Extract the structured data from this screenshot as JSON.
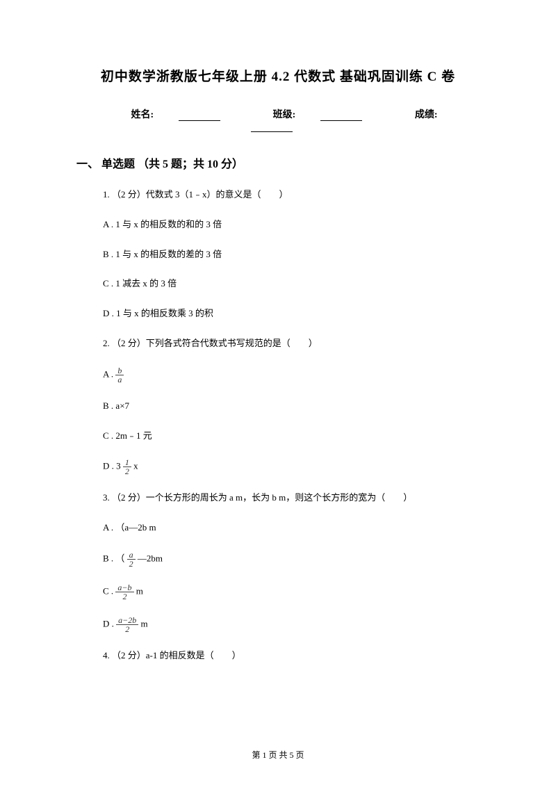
{
  "title": "初中数学浙教版七年级上册 4.2 代数式 基础巩固训练 C 卷",
  "info": {
    "name_label": "姓名:",
    "class_label": "班级:",
    "score_label": "成绩:"
  },
  "section1": {
    "header": "一、 单选题 （共 5 题；共 10 分）",
    "q1": {
      "text": "1. （2 分）代数式 3（1﹣x）的意义是（　　）",
      "optA": "A . 1 与 x 的相反数的和的 3 倍",
      "optB": "B . 1 与 x 的相反数的差的 3 倍",
      "optC": "C . 1 减去 x 的 3 倍",
      "optD": "D . 1 与 x 的相反数乘 3 的积"
    },
    "q2": {
      "text": "2. （2 分）下列各式符合代数式书写规范的是（　　）",
      "optA_prefix": "A . ",
      "optA_frac_num": "b",
      "optA_frac_den": "a",
      "optB": "B . a×7",
      "optC": "C . 2m﹣1 元",
      "optD_prefix": "D . 3 ",
      "optD_frac_num": "1",
      "optD_frac_den": "2",
      "optD_suffix": "  x"
    },
    "q3": {
      "text": "3. （2 分）一个长方形的周长为 a m，长为 b m，则这个长方形的宽为（　　）",
      "optA": "A . （a—2b m",
      "optB_prefix": "B . （",
      "optB_frac_num": "a",
      "optB_frac_den": "2",
      "optB_suffix": " —2bm",
      "optC_prefix": "C . ",
      "optC_frac_num": "a−b",
      "optC_frac_den": "2",
      "optC_suffix": "  m",
      "optD_prefix": "D . ",
      "optD_frac_num": "a−2b",
      "optD_frac_den": "2",
      "optD_suffix": "  m"
    },
    "q4": {
      "text": "4. （2 分）a-1 的相反数是（　　）"
    }
  },
  "footer": "第 1 页 共 5 页"
}
